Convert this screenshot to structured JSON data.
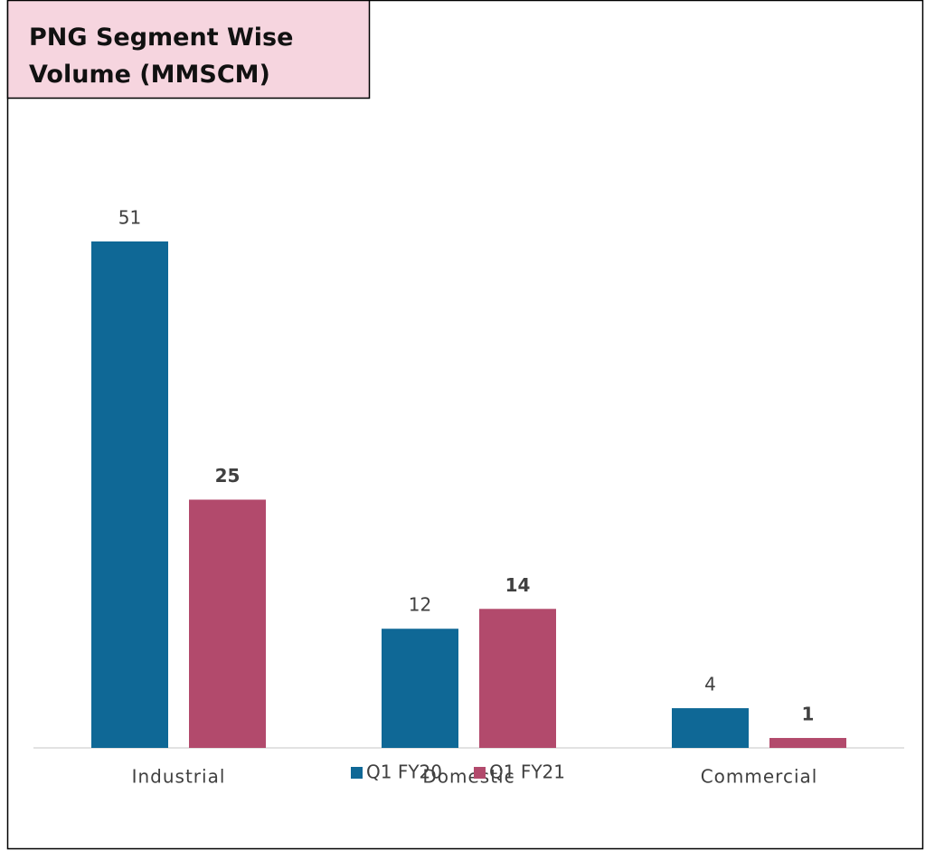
{
  "chart_data": {
    "type": "bar",
    "title": [
      "PNG Segment Wise",
      "Volume (MMSCM)"
    ],
    "categories": [
      "Industrial",
      "Domestic",
      "Commercial"
    ],
    "series": [
      {
        "name": "Q1 FY20",
        "color": "#0f6896",
        "values": [
          51,
          12,
          4
        ]
      },
      {
        "name": "Q1 FY21",
        "color": "#b24a6c",
        "values": [
          25,
          14,
          1
        ]
      }
    ]
  }
}
